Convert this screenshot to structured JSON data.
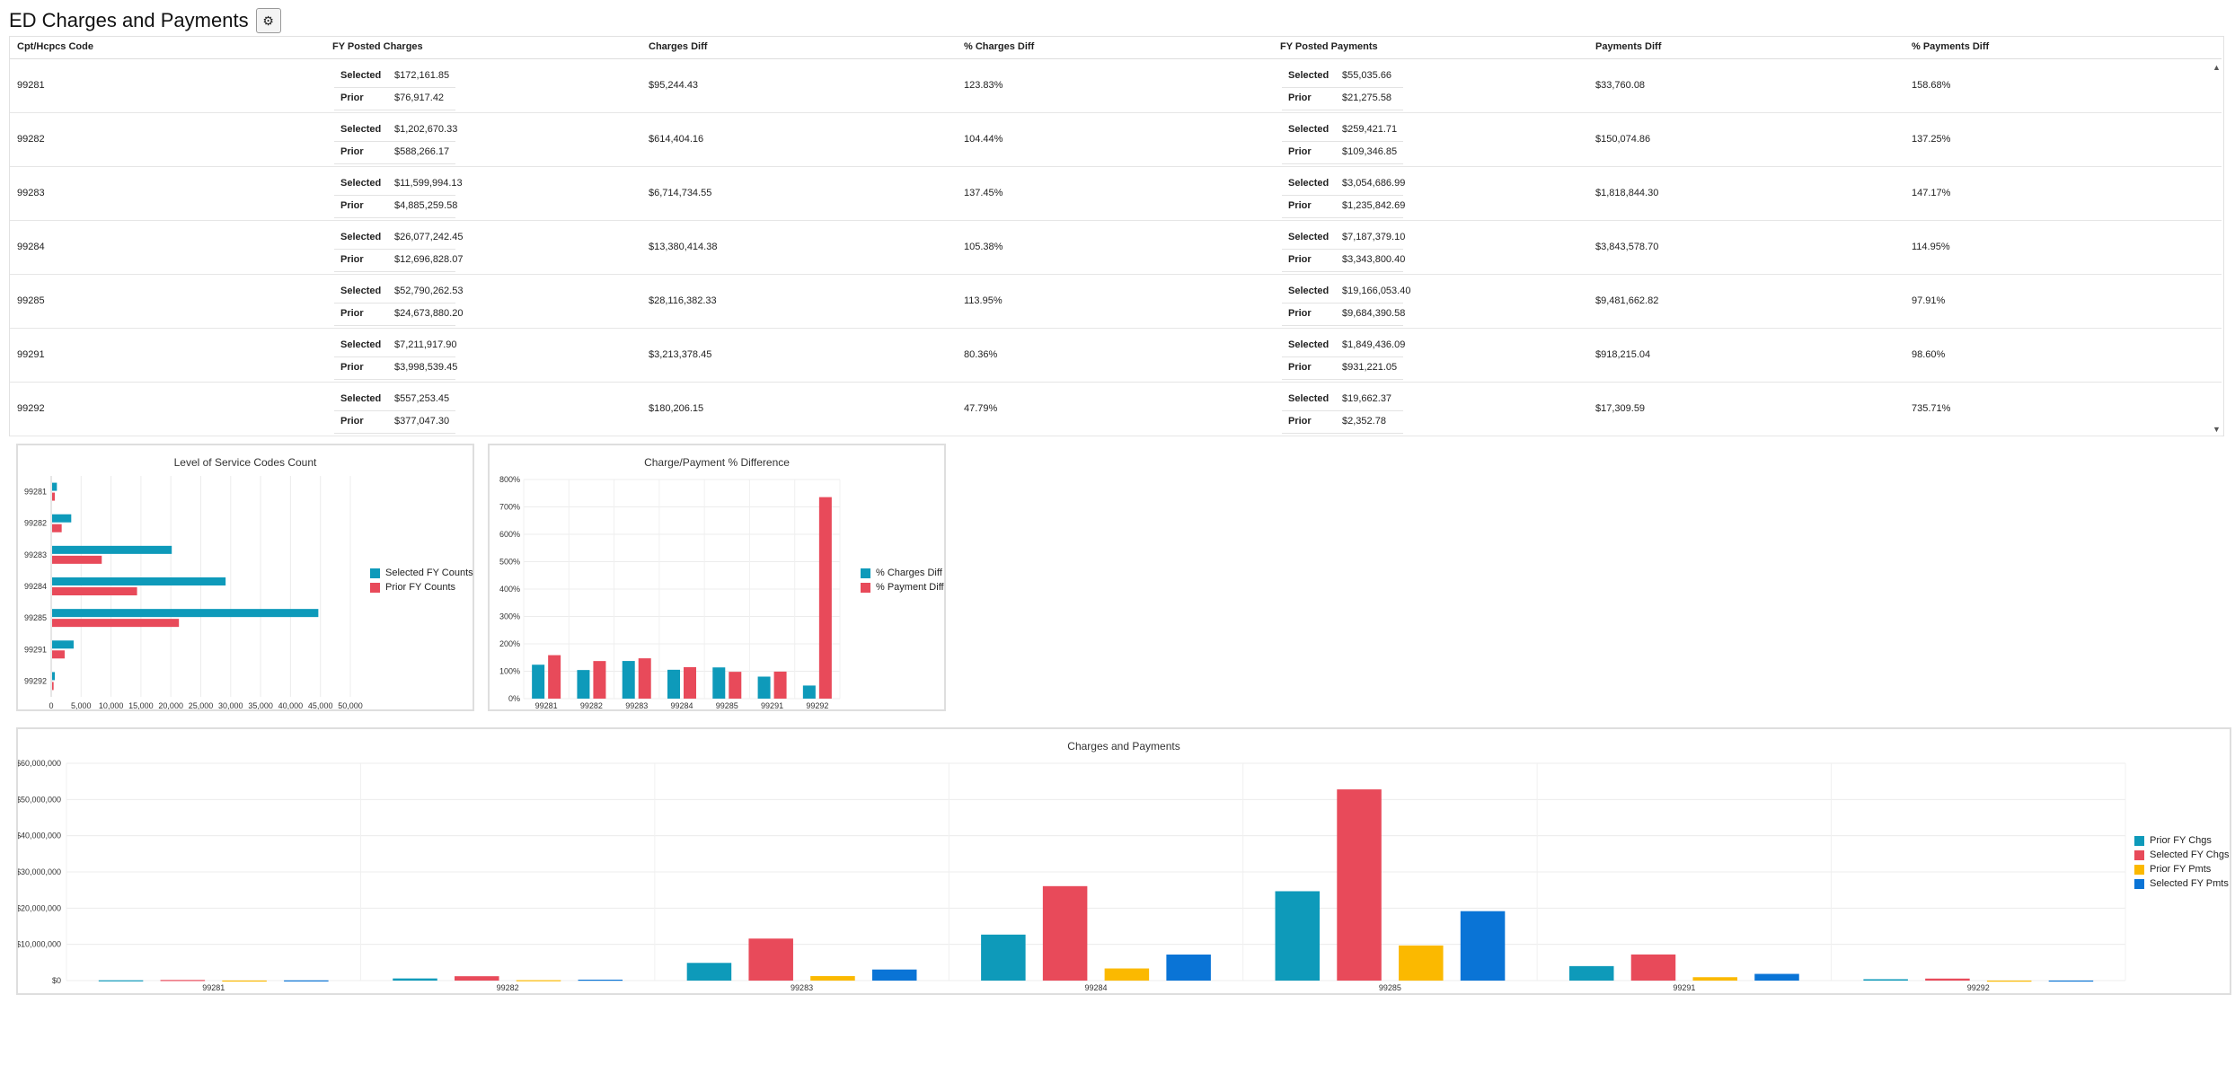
{
  "header": {
    "title": "ED Charges and Payments",
    "settings_icon": "gear-icon"
  },
  "colors": {
    "teal": "#0e9aba",
    "red": "#e84a5a",
    "yellow": "#fbb900",
    "blue": "#0a74d6"
  },
  "table": {
    "columns": [
      "Cpt/Hcpcs Code",
      "FY Posted Charges",
      "Charges Diff",
      "% Charges Diff",
      "FY Posted Payments",
      "Payments Diff",
      "% Payments Diff"
    ],
    "selected_label": "Selected",
    "prior_label": "Prior",
    "rows": [
      {
        "code": "99281",
        "charges_selected": "$172,161.85",
        "charges_prior": "$76,917.42",
        "charges_diff": "$95,244.43",
        "charges_pct": "123.83%",
        "payments_selected": "$55,035.66",
        "payments_prior": "$21,275.58",
        "payments_diff": "$33,760.08",
        "payments_pct": "158.68%"
      },
      {
        "code": "99282",
        "charges_selected": "$1,202,670.33",
        "charges_prior": "$588,266.17",
        "charges_diff": "$614,404.16",
        "charges_pct": "104.44%",
        "payments_selected": "$259,421.71",
        "payments_prior": "$109,346.85",
        "payments_diff": "$150,074.86",
        "payments_pct": "137.25%"
      },
      {
        "code": "99283",
        "charges_selected": "$11,599,994.13",
        "charges_prior": "$4,885,259.58",
        "charges_diff": "$6,714,734.55",
        "charges_pct": "137.45%",
        "payments_selected": "$3,054,686.99",
        "payments_prior": "$1,235,842.69",
        "payments_diff": "$1,818,844.30",
        "payments_pct": "147.17%"
      },
      {
        "code": "99284",
        "charges_selected": "$26,077,242.45",
        "charges_prior": "$12,696,828.07",
        "charges_diff": "$13,380,414.38",
        "charges_pct": "105.38%",
        "payments_selected": "$7,187,379.10",
        "payments_prior": "$3,343,800.40",
        "payments_diff": "$3,843,578.70",
        "payments_pct": "114.95%"
      },
      {
        "code": "99285",
        "charges_selected": "$52,790,262.53",
        "charges_prior": "$24,673,880.20",
        "charges_diff": "$28,116,382.33",
        "charges_pct": "113.95%",
        "payments_selected": "$19,166,053.40",
        "payments_prior": "$9,684,390.58",
        "payments_diff": "$9,481,662.82",
        "payments_pct": "97.91%"
      },
      {
        "code": "99291",
        "charges_selected": "$7,211,917.90",
        "charges_prior": "$3,998,539.45",
        "charges_diff": "$3,213,378.45",
        "charges_pct": "80.36%",
        "payments_selected": "$1,849,436.09",
        "payments_prior": "$931,221.05",
        "payments_diff": "$918,215.04",
        "payments_pct": "98.60%"
      },
      {
        "code": "99292",
        "charges_selected": "$557,253.45",
        "charges_prior": "$377,047.30",
        "charges_diff": "$180,206.15",
        "charges_pct": "47.79%",
        "payments_selected": "$19,662.37",
        "payments_prior": "$2,352.78",
        "payments_diff": "$17,309.59",
        "payments_pct": "735.71%"
      }
    ]
  },
  "chart_data": [
    {
      "type": "bar",
      "orientation": "horizontal",
      "title": "Level of Service Codes Count",
      "categories": [
        "99281",
        "99282",
        "99283",
        "99284",
        "99285",
        "99291",
        "99292"
      ],
      "series": [
        {
          "name": "Selected FY Counts",
          "values": [
            800,
            3200,
            20000,
            29000,
            44500,
            3600,
            450
          ]
        },
        {
          "name": "Prior FY Counts",
          "values": [
            450,
            1600,
            8300,
            14200,
            21200,
            2100,
            250
          ]
        }
      ],
      "xlim": [
        0,
        50000
      ],
      "xticks": [
        "0",
        "5,000",
        "10,000",
        "15,000",
        "20,000",
        "25,000",
        "30,000",
        "35,000",
        "40,000",
        "45,000",
        "50,000"
      ],
      "legend": "right",
      "grid": true
    },
    {
      "type": "bar",
      "title": "Charge/Payment % Difference",
      "categories": [
        "99281",
        "99282",
        "99283",
        "99284",
        "99285",
        "99291",
        "99292"
      ],
      "series": [
        {
          "name": "% Charges Diff",
          "values": [
            123.83,
            104.44,
            137.45,
            105.38,
            113.95,
            80.36,
            47.79
          ]
        },
        {
          "name": "% Payment Diff",
          "values": [
            158.68,
            137.25,
            147.17,
            114.95,
            97.91,
            98.6,
            735.71
          ]
        }
      ],
      "ylim": [
        0,
        800
      ],
      "yticks": [
        "0%",
        "100%",
        "200%",
        "300%",
        "400%",
        "500%",
        "600%",
        "700%",
        "800%"
      ],
      "legend": "right",
      "grid": true
    },
    {
      "type": "bar",
      "title": "Charges and Payments",
      "categories": [
        "99281",
        "99282",
        "99283",
        "99284",
        "99285",
        "99291",
        "99292"
      ],
      "series": [
        {
          "name": "Prior FY Chgs",
          "values": [
            76917.42,
            588266.17,
            4885259.58,
            12696828.07,
            24673880.2,
            3998539.45,
            377047.3
          ]
        },
        {
          "name": "Selected FY Chgs",
          "values": [
            172161.85,
            1202670.33,
            11599994.13,
            26077242.45,
            52790262.53,
            7211917.9,
            557253.45
          ]
        },
        {
          "name": "Prior FY Pmts",
          "values": [
            21275.58,
            109346.85,
            1235842.69,
            3343800.4,
            9684390.58,
            931221.05,
            2352.78
          ]
        },
        {
          "name": "Selected FY Pmts",
          "values": [
            55035.66,
            259421.71,
            3054686.99,
            7187379.1,
            19166053.4,
            1849436.09,
            19662.37
          ]
        }
      ],
      "ylim": [
        0,
        60000000
      ],
      "yticks": [
        "$0",
        "$10,000,000",
        "$20,000,000",
        "$30,000,000",
        "$40,000,000",
        "$50,000,000",
        "$60,000,000"
      ],
      "legend": "right",
      "grid": true
    }
  ]
}
